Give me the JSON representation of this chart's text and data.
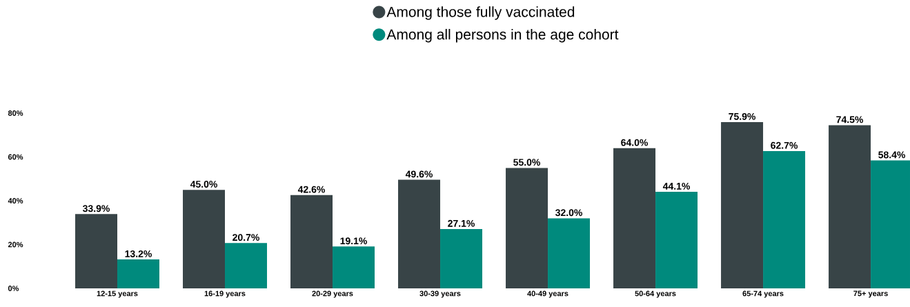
{
  "chart_data": {
    "type": "bar",
    "categories": [
      "12-15 years",
      "16-19 years",
      "20-29 years",
      "30-39 years",
      "40-49 years",
      "50-64 years",
      "65-74 years",
      "75+ years"
    ],
    "series": [
      {
        "name": "Among those fully vaccinated",
        "color": "#384447",
        "values": [
          33.9,
          45.0,
          42.6,
          49.6,
          55.0,
          64.0,
          75.9,
          74.5
        ],
        "value_labels": [
          "33.9%",
          "45.0%",
          "42.6%",
          "49.6%",
          "55.0%",
          "64.0%",
          "75.9%",
          "74.5%"
        ]
      },
      {
        "name": "Among all persons in the age cohort",
        "color": "#008a7d",
        "values": [
          13.2,
          20.7,
          19.1,
          27.1,
          32.0,
          44.1,
          62.7,
          58.4
        ],
        "value_labels": [
          "13.2%",
          "20.7%",
          "19.1%",
          "27.1%",
          "32.0%",
          "44.1%",
          "62.7%",
          "58.4%"
        ]
      }
    ],
    "ylim": [
      0,
      80
    ],
    "yticks": [
      {
        "value": 0,
        "label": "0%"
      },
      {
        "value": 20,
        "label": "20%"
      },
      {
        "value": 40,
        "label": "40%"
      },
      {
        "value": 60,
        "label": "60%"
      },
      {
        "value": 80,
        "label": "80%"
      }
    ],
    "legend": "top",
    "grid": false
  }
}
